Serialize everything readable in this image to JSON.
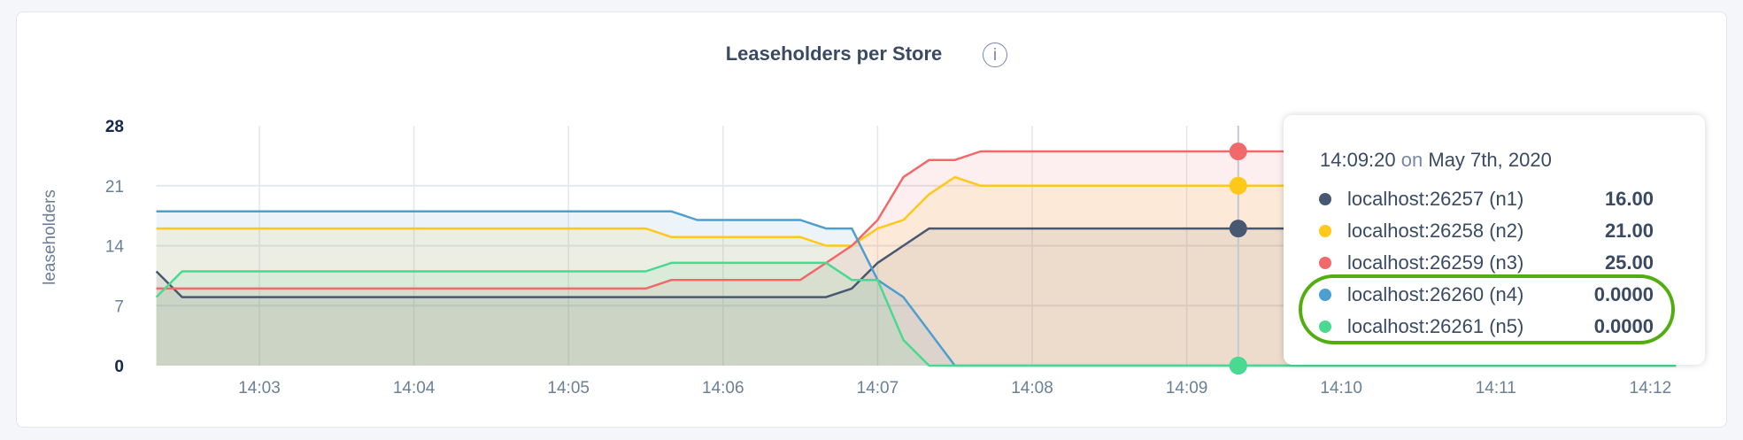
{
  "chart_data": {
    "type": "area",
    "title": "Leaseholders per Store",
    "ylabel": "leaseholders",
    "xlabel": "",
    "ylim": [
      0,
      28
    ],
    "yticks": [
      "0",
      "7",
      "14",
      "21",
      "28"
    ],
    "xticks": [
      "14:03",
      "14:04",
      "14:05",
      "14:06",
      "14:07",
      "14:08",
      "14:09",
      "14:10",
      "14:11",
      "14:12"
    ],
    "grid": true,
    "x": [
      "14:02:20",
      "14:02:30",
      "14:02:40",
      "14:02:50",
      "14:03:00",
      "14:03:10",
      "14:03:20",
      "14:03:30",
      "14:03:40",
      "14:03:50",
      "14:04:00",
      "14:04:10",
      "14:04:20",
      "14:04:30",
      "14:04:40",
      "14:04:50",
      "14:05:00",
      "14:05:10",
      "14:05:20",
      "14:05:30",
      "14:05:40",
      "14:05:50",
      "14:06:00",
      "14:06:10",
      "14:06:20",
      "14:06:30",
      "14:06:40",
      "14:06:50",
      "14:07:00",
      "14:07:10",
      "14:07:20",
      "14:07:30",
      "14:07:40",
      "14:07:50",
      "14:08:00",
      "14:08:10",
      "14:08:20",
      "14:08:30",
      "14:08:40",
      "14:08:50",
      "14:09:00",
      "14:09:10",
      "14:09:20",
      "14:09:30",
      "14:09:40",
      "14:09:50",
      "14:10:00",
      "14:10:10",
      "14:10:20",
      "14:10:30",
      "14:10:40",
      "14:10:50",
      "14:11:00",
      "14:11:10",
      "14:11:20",
      "14:11:30",
      "14:11:40",
      "14:11:50",
      "14:12:00",
      "14:12:10"
    ],
    "series": [
      {
        "name": "localhost:26257 (n1)",
        "color": "#475872",
        "values": [
          11,
          8,
          8,
          8,
          8,
          8,
          8,
          8,
          8,
          8,
          8,
          8,
          8,
          8,
          8,
          8,
          8,
          8,
          8,
          8,
          8,
          8,
          8,
          8,
          8,
          8,
          8,
          9,
          12,
          14,
          16,
          16,
          16,
          16,
          16,
          16,
          16,
          16,
          16,
          16,
          16,
          16,
          16,
          16,
          16,
          16,
          16,
          16,
          16,
          16,
          16,
          16,
          16,
          16,
          16,
          16,
          16,
          16,
          16,
          16
        ]
      },
      {
        "name": "localhost:26258 (n2)",
        "color": "#ffc81a",
        "values": [
          16,
          16,
          16,
          16,
          16,
          16,
          16,
          16,
          16,
          16,
          16,
          16,
          16,
          16,
          16,
          16,
          16,
          16,
          16,
          16,
          15,
          15,
          15,
          15,
          15,
          15,
          14,
          14,
          16,
          17,
          20,
          22,
          21,
          21,
          21,
          21,
          21,
          21,
          21,
          21,
          21,
          21,
          21,
          21,
          21,
          21,
          21,
          21,
          21,
          21,
          21,
          21,
          21,
          21,
          21,
          21,
          21,
          21,
          21,
          21
        ]
      },
      {
        "name": "localhost:26259 (n3)",
        "color": "#f16969",
        "values": [
          9,
          9,
          9,
          9,
          9,
          9,
          9,
          9,
          9,
          9,
          9,
          9,
          9,
          9,
          9,
          9,
          9,
          9,
          9,
          9,
          10,
          10,
          10,
          10,
          10,
          10,
          12,
          14,
          17,
          22,
          24,
          24,
          25,
          25,
          25,
          25,
          25,
          25,
          25,
          25,
          25,
          25,
          25,
          25,
          25,
          25,
          25,
          25,
          25,
          25,
          25,
          25,
          25,
          25,
          25,
          25,
          25,
          25,
          25,
          25
        ]
      },
      {
        "name": "localhost:26260 (n4)",
        "color": "#4e9fd1",
        "values": [
          18,
          18,
          18,
          18,
          18,
          18,
          18,
          18,
          18,
          18,
          18,
          18,
          18,
          18,
          18,
          18,
          18,
          18,
          18,
          18,
          18,
          17,
          17,
          17,
          17,
          17,
          16,
          16,
          10,
          8,
          4,
          0,
          0,
          0,
          0,
          0,
          0,
          0,
          0,
          0,
          0,
          0,
          0,
          0,
          0,
          0,
          0,
          0,
          0,
          0,
          0,
          0,
          0,
          0,
          0,
          0,
          0,
          0,
          0,
          0
        ]
      },
      {
        "name": "localhost:26261 (n5)",
        "color": "#49d990",
        "values": [
          8,
          11,
          11,
          11,
          11,
          11,
          11,
          11,
          11,
          11,
          11,
          11,
          11,
          11,
          11,
          11,
          11,
          11,
          11,
          11,
          12,
          12,
          12,
          12,
          12,
          12,
          12,
          10,
          10,
          3,
          0,
          0,
          0,
          0,
          0,
          0,
          0,
          0,
          0,
          0,
          0,
          0,
          0,
          0,
          0,
          0,
          0,
          0,
          0,
          0,
          0,
          0,
          0,
          0,
          0,
          0,
          0,
          0,
          0,
          0
        ]
      }
    ],
    "hover_x": "14:09:20",
    "legend": "tooltip"
  },
  "tooltip": {
    "time": "14:09:20",
    "on": "on",
    "date": "May 7th, 2020",
    "rows": [
      {
        "label": "localhost:26257 (n1)",
        "value": "16.00",
        "color": "#475872"
      },
      {
        "label": "localhost:26258 (n2)",
        "value": "21.00",
        "color": "#ffc81a"
      },
      {
        "label": "localhost:26259 (n3)",
        "value": "25.00",
        "color": "#f16969"
      },
      {
        "label": "localhost:26260 (n4)",
        "value": "0.0000",
        "color": "#4e9fd1"
      },
      {
        "label": "localhost:26261 (n5)",
        "value": "0.0000",
        "color": "#49d990"
      }
    ],
    "highlight_color": "#52ad10"
  },
  "info_icon": "info-circle-icon",
  "info_glyph": "i"
}
